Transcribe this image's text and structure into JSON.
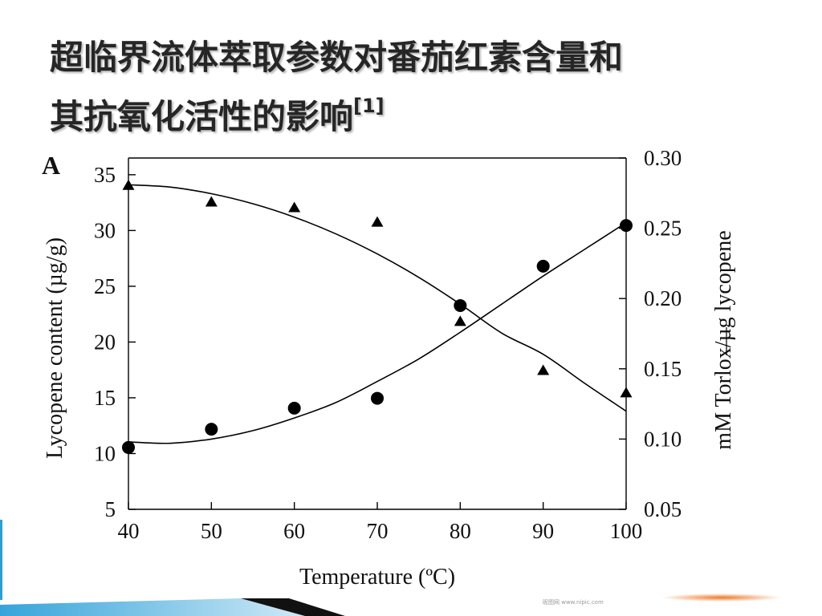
{
  "slide": {
    "title_line1": "超临界流体萃取参数对番茄红素含量和",
    "title_line2": "其抗氧化活性的影响",
    "title_ref": "[1]"
  },
  "chart_data": {
    "type": "scatter",
    "panel_label": "A",
    "xlabel": "Temperature (ºC)",
    "ylabel_left": "Lycopene content (µg/g)",
    "ylabel_right": "mM Torlox/µg lycopene",
    "x_ticks": [
      40,
      50,
      60,
      70,
      80,
      90,
      100
    ],
    "xlim": [
      40,
      100
    ],
    "y_left_ticks": [
      5,
      10,
      15,
      20,
      25,
      30,
      35
    ],
    "y_left_tick_labels": [
      "5",
      "10",
      "15",
      "20",
      "25",
      "30",
      "35"
    ],
    "ylim_left": [
      5,
      36.5
    ],
    "y_right_ticks": [
      0.05,
      0.1,
      0.15,
      0.2,
      0.25,
      0.3
    ],
    "y_right_tick_labels": [
      "0.05",
      "0.10",
      "0.15",
      "0.20",
      "0.25",
      "0.30"
    ],
    "ylim_right": [
      0.05,
      0.3
    ],
    "series": [
      {
        "marker": "triangle",
        "axis": "left",
        "x": [
          40,
          50,
          60,
          70,
          80,
          90,
          100
        ],
        "values": [
          34.0,
          32.5,
          32.0,
          30.7,
          21.8,
          17.4,
          15.4
        ],
        "fit": [
          [
            40,
            34.1
          ],
          [
            45,
            33.9
          ],
          [
            50,
            33.3
          ],
          [
            55,
            32.4
          ],
          [
            60,
            31.2
          ],
          [
            65,
            29.7
          ],
          [
            70,
            27.9
          ],
          [
            75,
            25.8
          ],
          [
            80,
            23.4
          ],
          [
            85,
            20.8
          ],
          [
            90,
            18.9
          ],
          [
            95,
            16.3
          ],
          [
            100,
            13.8
          ]
        ]
      },
      {
        "marker": "circle",
        "axis": "right",
        "x": [
          40,
          50,
          60,
          70,
          80,
          90,
          100
        ],
        "values": [
          0.094,
          0.107,
          0.122,
          0.129,
          0.195,
          0.223,
          0.252
        ],
        "fit": [
          [
            40,
            0.098
          ],
          [
            45,
            0.097
          ],
          [
            50,
            0.1
          ],
          [
            55,
            0.106
          ],
          [
            60,
            0.115
          ],
          [
            65,
            0.126
          ],
          [
            70,
            0.141
          ],
          [
            75,
            0.157
          ],
          [
            80,
            0.176
          ],
          [
            85,
            0.196
          ],
          [
            90,
            0.216
          ],
          [
            95,
            0.235
          ],
          [
            100,
            0.254
          ]
        ]
      }
    ]
  },
  "decor": {
    "accent_color": "#2b9fd8",
    "dark_color": "#111111",
    "orange_color": "#f07a2a",
    "watermark_text": "昵图网 www.nipic.com"
  }
}
